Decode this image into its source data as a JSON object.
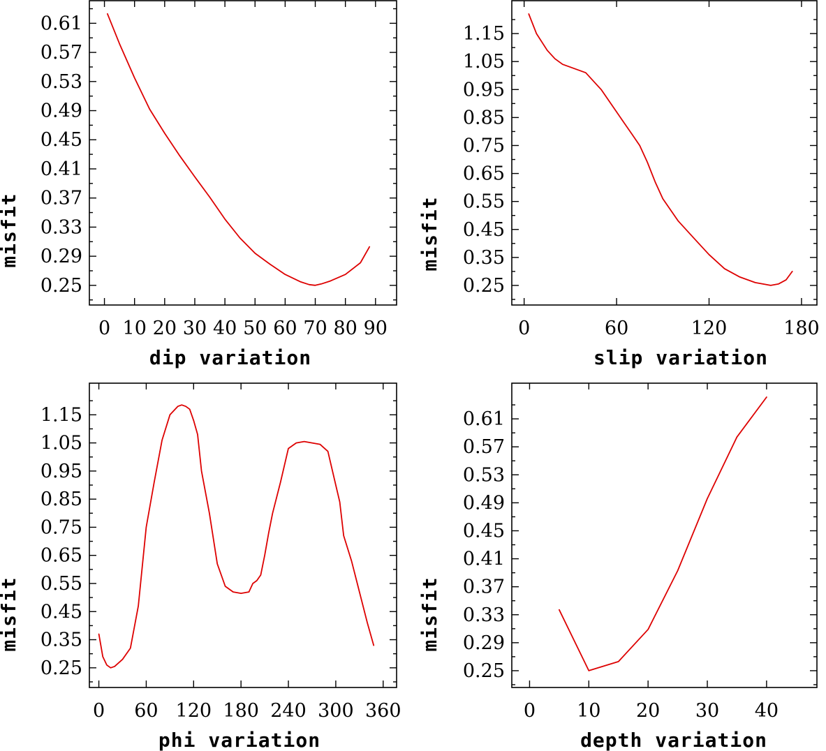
{
  "line_color": "#dd0000",
  "chart_data": [
    {
      "type": "line",
      "xlabel": "dip    variation",
      "ylabel": "misfit",
      "xlim": [
        -5,
        97
      ],
      "ylim": [
        0.223,
        0.642
      ],
      "xticks": [
        0,
        10,
        20,
        30,
        40,
        50,
        60,
        70,
        80,
        90
      ],
      "xtick_labels": [
        "0",
        "10",
        "20",
        "30",
        "40",
        "50",
        "60",
        "70",
        "80",
        "90"
      ],
      "yticks": [
        0.25,
        0.29,
        0.33,
        0.37,
        0.41,
        0.45,
        0.49,
        0.53,
        0.57,
        0.61
      ],
      "ytick_labels": [
        "0.25",
        "0.29",
        "0.33",
        "0.37",
        "0.41",
        "0.45",
        "0.49",
        "0.53",
        "0.57",
        "0.61"
      ],
      "x": [
        1,
        5,
        10,
        15,
        20,
        25,
        30,
        35,
        40,
        45,
        50,
        55,
        60,
        65,
        68,
        70,
        72,
        75,
        80,
        85,
        88
      ],
      "y": [
        0.623,
        0.582,
        0.535,
        0.492,
        0.459,
        0.428,
        0.399,
        0.371,
        0.341,
        0.315,
        0.294,
        0.279,
        0.265,
        0.255,
        0.251,
        0.25,
        0.252,
        0.256,
        0.265,
        0.281,
        0.303
      ]
    },
    {
      "type": "line",
      "xlabel": "slip   variation",
      "ylabel": "misfit",
      "xlim": [
        -8,
        190
      ],
      "ylim": [
        0.18,
        1.27
      ],
      "xticks": [
        0,
        60,
        120,
        180
      ],
      "xtick_labels": [
        "0",
        "60",
        "120",
        "180"
      ],
      "yticks": [
        0.25,
        0.35,
        0.45,
        0.55,
        0.65,
        0.75,
        0.85,
        0.95,
        1.05,
        1.15
      ],
      "ytick_labels": [
        "0.25",
        "0.35",
        "0.45",
        "0.55",
        "0.65",
        "0.75",
        "0.85",
        "0.95",
        "1.05",
        "1.15"
      ],
      "x": [
        3,
        8,
        15,
        20,
        25,
        30,
        40,
        45,
        50,
        55,
        60,
        65,
        70,
        75,
        80,
        85,
        90,
        100,
        110,
        120,
        130,
        140,
        150,
        155,
        160,
        165,
        170,
        174
      ],
      "y": [
        1.22,
        1.15,
        1.09,
        1.06,
        1.04,
        1.03,
        1.01,
        0.98,
        0.95,
        0.91,
        0.87,
        0.83,
        0.79,
        0.75,
        0.69,
        0.62,
        0.56,
        0.48,
        0.42,
        0.36,
        0.31,
        0.28,
        0.26,
        0.255,
        0.25,
        0.255,
        0.27,
        0.3
      ]
    },
    {
      "type": "line",
      "xlabel": "phi    variation",
      "ylabel": "misfit",
      "xlim": [
        -12,
        377
      ],
      "ylim": [
        0.18,
        1.265
      ],
      "xticks": [
        0,
        60,
        120,
        180,
        240,
        300,
        360
      ],
      "xtick_labels": [
        "0",
        "60",
        "120",
        "180",
        "240",
        "300",
        "360"
      ],
      "yticks": [
        0.25,
        0.35,
        0.45,
        0.55,
        0.65,
        0.75,
        0.85,
        0.95,
        1.05,
        1.15
      ],
      "ytick_labels": [
        "0.25",
        "0.35",
        "0.45",
        "0.55",
        "0.65",
        "0.75",
        "0.85",
        "0.95",
        "1.05",
        "1.15"
      ],
      "x": [
        0,
        5,
        10,
        15,
        20,
        30,
        40,
        50,
        60,
        70,
        80,
        90,
        100,
        105,
        110,
        115,
        120,
        125,
        130,
        140,
        150,
        160,
        170,
        180,
        190,
        195,
        200,
        205,
        210,
        215,
        220,
        230,
        240,
        250,
        260,
        270,
        280,
        290,
        300,
        305,
        310,
        320,
        330,
        340,
        348
      ],
      "y": [
        0.37,
        0.29,
        0.26,
        0.25,
        0.255,
        0.28,
        0.32,
        0.47,
        0.75,
        0.91,
        1.06,
        1.15,
        1.18,
        1.185,
        1.18,
        1.17,
        1.13,
        1.08,
        0.95,
        0.8,
        0.62,
        0.54,
        0.52,
        0.515,
        0.52,
        0.55,
        0.56,
        0.58,
        0.65,
        0.73,
        0.8,
        0.91,
        1.03,
        1.05,
        1.055,
        1.05,
        1.045,
        1.02,
        0.9,
        0.84,
        0.72,
        0.63,
        0.52,
        0.41,
        0.33
      ]
    },
    {
      "type": "line",
      "xlabel": "depth  variation",
      "ylabel": "misfit",
      "xlim": [
        -3,
        48.5
      ],
      "ylim": [
        0.226,
        0.662
      ],
      "xticks": [
        0,
        10,
        20,
        30,
        40
      ],
      "xtick_labels": [
        "0",
        "10",
        "20",
        "30",
        "40"
      ],
      "yticks": [
        0.25,
        0.29,
        0.33,
        0.37,
        0.41,
        0.45,
        0.49,
        0.53,
        0.57,
        0.61
      ],
      "ytick_labels": [
        "0.25",
        "0.29",
        "0.33",
        "0.37",
        "0.41",
        "0.45",
        "0.49",
        "0.53",
        "0.57",
        "0.61"
      ],
      "x": [
        5,
        10,
        15,
        20,
        25,
        30,
        35,
        40
      ],
      "y": [
        0.337,
        0.25,
        0.263,
        0.309,
        0.393,
        0.496,
        0.584,
        0.641
      ]
    }
  ]
}
